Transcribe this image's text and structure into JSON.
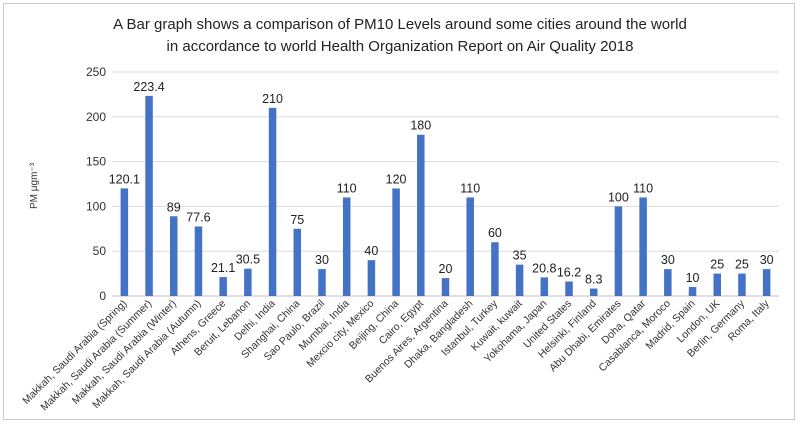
{
  "chart_data": {
    "type": "bar",
    "title": "A Bar graph shows a comparison of PM10 Levels around some cities around the world",
    "subtitle": "in accordance to world Health Organization Report on Air Quality 2018",
    "ylabel": "PM μgm⁻³",
    "xlabel": "",
    "ylim": [
      0,
      250
    ],
    "yticks": [
      "0",
      "50",
      "100",
      "150",
      "200",
      "250"
    ],
    "grid": true,
    "bar_color": "#4472C4",
    "categories": [
      "Makkah, Saudi Arabia (Spring)",
      "Makkah, Saudi Arabia (Summer)",
      "Makkah, Saudi Arabia (Winter)",
      "Makkah, Saudi Arabia (Autumn)",
      "Athens, Greece",
      "Beruit, Lebanon",
      "Delhi, India",
      "Shanghai, China",
      "Sao Paulo, Brazil",
      "Mumbai, India",
      "Mexcio city, Mexico",
      "Beijing, China",
      "Cairo, Egypt",
      "Buenos Aires, Argentina",
      "Dhaka, Bangladesh",
      "Istanbul, Turkey",
      "Kuwait, kuwait",
      "Yokohama, Japan",
      "United States",
      "Helsinki, Finland",
      "Abu Dhabi, Emirates",
      "Doha, Qatar",
      "Casablanca, Moroco",
      "Madrid, Spain",
      "London, UK",
      "Berlin, Germany",
      "Roma, Italy"
    ],
    "values": [
      120.1,
      223.4,
      89,
      77.6,
      21.1,
      30.5,
      210,
      75,
      30,
      110,
      40,
      120,
      180,
      20,
      110,
      60,
      35,
      20.8,
      16.2,
      8.3,
      100,
      110,
      30,
      10,
      25,
      25,
      30
    ],
    "data_labels": [
      "120.1",
      "223.4",
      "89",
      "77.6",
      "21.1",
      "30.5",
      "210",
      "75",
      "30",
      "110",
      "40",
      "120",
      "180",
      "20",
      "110",
      "60",
      "35",
      "20.8",
      "16.2",
      "8.3",
      "100",
      "110",
      "30",
      "10",
      "25",
      "25",
      "30"
    ]
  }
}
